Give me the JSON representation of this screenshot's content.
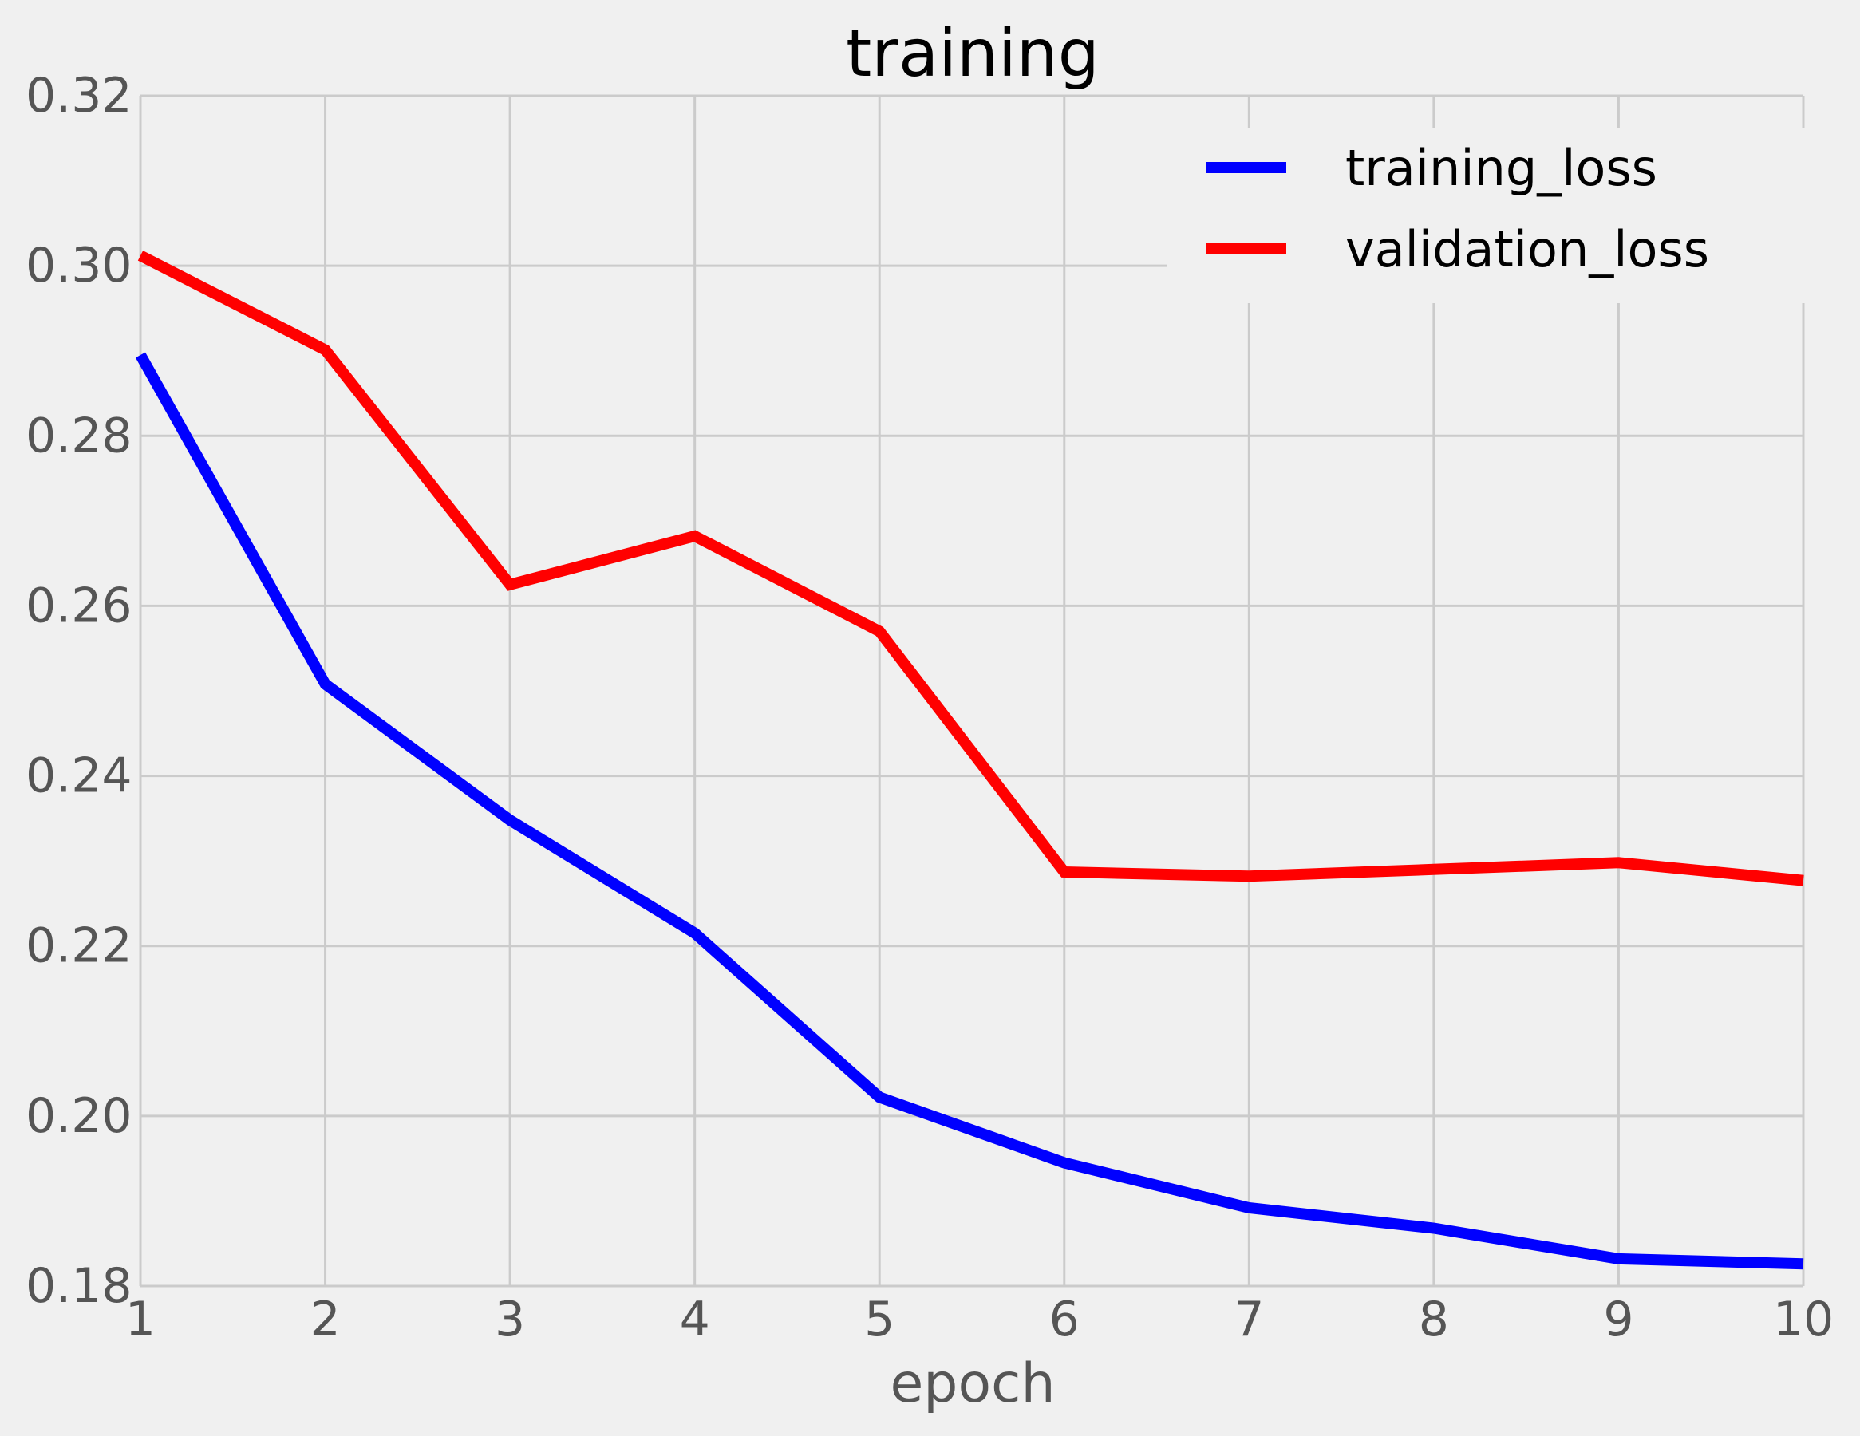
{
  "chart_data": {
    "type": "line",
    "title": "training",
    "xlabel": "epoch",
    "ylabel": "",
    "xlim": [
      1,
      10
    ],
    "ylim": [
      0.18,
      0.32
    ],
    "xticks": [
      "1",
      "2",
      "3",
      "4",
      "5",
      "6",
      "7",
      "8",
      "9",
      "10"
    ],
    "yticks": [
      "0.18",
      "0.20",
      "0.22",
      "0.24",
      "0.26",
      "0.28",
      "0.30",
      "0.32"
    ],
    "grid": true,
    "legend_position": "top-right",
    "x": [
      1,
      2,
      3,
      4,
      5,
      6,
      7,
      8,
      9,
      10
    ],
    "series": [
      {
        "name": "training_loss",
        "color": "#0000ff",
        "values": [
          0.2895,
          0.2508,
          0.2348,
          0.2215,
          0.2022,
          0.1945,
          0.1892,
          0.1868,
          0.1832,
          0.1826
        ]
      },
      {
        "name": "validation_loss",
        "color": "#ff0000",
        "values": [
          0.3012,
          0.2901,
          0.2625,
          0.2682,
          0.257,
          0.2287,
          0.2282,
          0.229,
          0.2298,
          0.2277
        ]
      }
    ]
  },
  "colors": {
    "background": "#f0f0f0",
    "grid": "#cbcbcb",
    "tick_text": "#555555",
    "title_text": "#000000"
  }
}
